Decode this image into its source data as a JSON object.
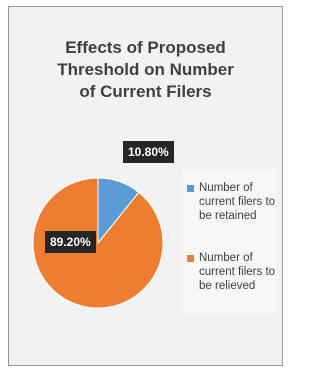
{
  "chart_data": {
    "type": "pie",
    "title": "Effects of Proposed Threshold on Number of Current Filers",
    "categories": [
      "Number of current filers to be retained",
      "Number of current filers to be relieved"
    ],
    "values": [
      10.8,
      89.2
    ],
    "value_labels": [
      "10.80%",
      "89.20%"
    ],
    "colors": [
      "#5b9bd5",
      "#ed7d31"
    ],
    "legend": "right"
  }
}
